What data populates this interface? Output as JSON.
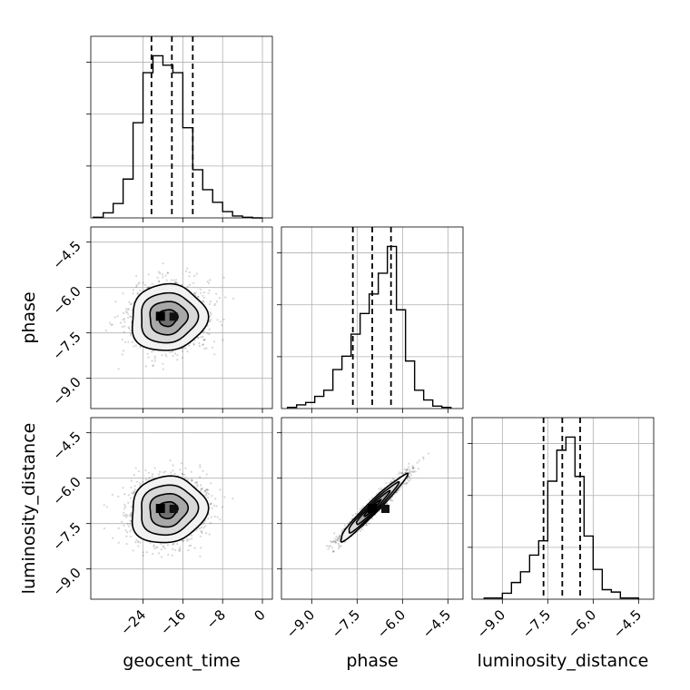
{
  "chart_data": {
    "type": "corner",
    "parameters": [
      {
        "name": "geocent_time",
        "ticks": [
          -24,
          -16,
          -8,
          0
        ],
        "tick_labels": [
          "−24",
          "−16",
          "−8",
          "0"
        ],
        "range": [
          -34.5,
          2.0
        ],
        "quantiles": [
          -22.3,
          -18.2,
          -14.0
        ],
        "hist": {
          "edges": [
            -34,
            -32,
            -30,
            -28,
            -26,
            -24,
            -22,
            -20,
            -18,
            -16,
            -14,
            -12,
            -10,
            -8,
            -6,
            -4,
            -2,
            0
          ],
          "counts": [
            1,
            8,
            23,
            62,
            152,
            232,
            259,
            244,
            232,
            144,
            77,
            45,
            25,
            10,
            3,
            1,
            0
          ]
        }
      },
      {
        "name": "phase",
        "ticks": [
          -9.0,
          -7.5,
          -6.0,
          -4.5
        ],
        "tick_labels": [
          "−9.0",
          "−7.5",
          "−6.0",
          "−4.5"
        ],
        "range": [
          -10.0,
          -4.0
        ],
        "quantiles": [
          -7.64,
          -7.0,
          -6.38
        ],
        "hist": {
          "edges": [
            -9.8,
            -9.5,
            -9.2,
            -8.9,
            -8.6,
            -8.3,
            -8.0,
            -7.7,
            -7.4,
            -7.1,
            -6.8,
            -6.5,
            -6.2,
            -5.9,
            -5.6,
            -5.3,
            -5.0,
            -4.7,
            -4.4
          ],
          "counts": [
            1,
            3,
            5,
            10,
            15,
            32,
            43,
            61,
            78,
            94,
            111,
            133,
            81,
            39,
            15,
            7,
            2,
            1
          ]
        }
      },
      {
        "name": "luminosity_distance",
        "ticks": [
          -9.0,
          -7.5,
          -6.0,
          -4.5
        ],
        "tick_labels": [
          "−9.0",
          "−7.5",
          "−6.0",
          "−4.5"
        ],
        "range": [
          -10.0,
          -4.0
        ],
        "quantiles": [
          -7.64,
          -7.02,
          -6.43
        ],
        "hist": {
          "edges": [
            -9.6,
            -9.3,
            -9.0,
            -8.7,
            -8.4,
            -8.1,
            -7.8,
            -7.5,
            -7.2,
            -6.9,
            -6.6,
            -6.3,
            -6.0,
            -5.7,
            -5.4,
            -5.1,
            -4.8,
            -4.5
          ],
          "counts": [
            1,
            1,
            5,
            14,
            23,
            37,
            49,
            99,
            125,
            136,
            103,
            53,
            25,
            8,
            6,
            1,
            1
          ]
        }
      }
    ],
    "pairs": [
      {
        "x": 0,
        "y": 1,
        "mean": [
          -19.0,
          -7.0
        ],
        "sd": [
          3.8,
          0.55
        ],
        "rho": 0.05,
        "peak": [
          -20.5,
          -6.95
        ]
      },
      {
        "x": 0,
        "y": 2,
        "mean": [
          -19.0,
          -7.05
        ],
        "sd": [
          3.8,
          0.55
        ],
        "rho": 0.08,
        "peak": [
          -20.5,
          -7.0
        ]
      },
      {
        "x": 1,
        "y": 2,
        "mean": [
          -7.0,
          -7.0
        ],
        "sd": [
          0.55,
          0.55
        ],
        "rho": 0.97,
        "peak": [
          -7.0,
          -7.0
        ]
      }
    ]
  }
}
